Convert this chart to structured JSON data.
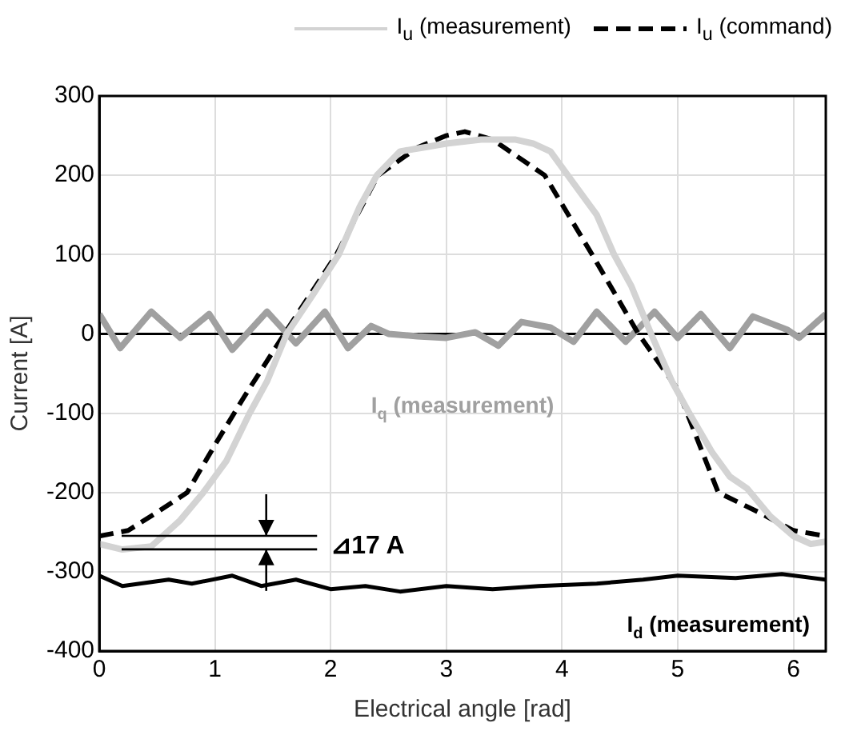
{
  "chart_data": {
    "type": "line",
    "xlabel": "Electrical angle [rad]",
    "ylabel": "Current [A]",
    "xlim": [
      0,
      6.28
    ],
    "ylim": [
      -400,
      300
    ],
    "xticks": [
      0,
      1,
      2,
      3,
      4,
      5,
      6
    ],
    "yticks": [
      -400,
      -300,
      -200,
      -100,
      0,
      100,
      200,
      300
    ],
    "grid": true,
    "legend": "top",
    "marker": "none",
    "series": [
      {
        "name": "I$_{u}$ (measurement)",
        "color": "#d3d3d3",
        "x": [
          0,
          0.2,
          0.45,
          0.7,
          0.9,
          1.1,
          1.3,
          1.45,
          1.62,
          1.85,
          2.07,
          2.25,
          2.4,
          2.6,
          2.8,
          3.0,
          3.3,
          3.6,
          3.75,
          3.9,
          4.1,
          4.3,
          4.45,
          4.6,
          4.77,
          4.95,
          5.1,
          5.3,
          5.45,
          5.6,
          5.8,
          6.0,
          6.15,
          6.28
        ],
        "values": [
          -265,
          -272,
          -268,
          -235,
          -200,
          -160,
          -100,
          -60,
          0,
          50,
          100,
          160,
          200,
          230,
          235,
          240,
          245,
          245,
          240,
          230,
          190,
          150,
          100,
          60,
          0,
          -60,
          -100,
          -150,
          -180,
          -195,
          -230,
          -255,
          -265,
          -262
        ]
      },
      {
        "name": "I$_{u}$ (command)",
        "color": "#000000",
        "line_style": "dashed",
        "x": [
          0,
          0.25,
          0.5,
          0.76,
          1.0,
          1.25,
          1.6,
          2.05,
          2.41,
          2.75,
          3.0,
          3.16,
          3.4,
          3.85,
          4.26,
          4.66,
          5.0,
          5.35,
          5.7,
          6.0,
          6.28
        ],
        "values": [
          -255,
          -248,
          -225,
          -200,
          -140,
          -80,
          0,
          100,
          200,
          235,
          250,
          255,
          245,
          200,
          100,
          0,
          -70,
          -200,
          -225,
          -248,
          -255
        ]
      },
      {
        "name": "I$_{q}$ (measurement)",
        "color": "#a0a0a0",
        "x": [
          0,
          0.18,
          0.45,
          0.7,
          0.95,
          1.15,
          1.45,
          1.7,
          1.95,
          2.15,
          2.35,
          2.5,
          2.75,
          3.0,
          3.25,
          3.45,
          3.65,
          3.9,
          4.1,
          4.3,
          4.55,
          4.8,
          5.0,
          5.2,
          5.45,
          5.65,
          5.95,
          6.05,
          6.28
        ],
        "values": [
          25,
          -18,
          28,
          -5,
          25,
          -20,
          28,
          -12,
          28,
          -18,
          10,
          0,
          -3,
          -5,
          2,
          -15,
          15,
          8,
          -10,
          28,
          -10,
          28,
          -5,
          25,
          -18,
          22,
          5,
          -5,
          25
        ]
      },
      {
        "name": "I$_{d}$ (measurement)",
        "color": "#000000",
        "x": [
          0,
          0.2,
          0.6,
          0.8,
          1.15,
          1.4,
          1.7,
          2.0,
          2.3,
          2.6,
          3.0,
          3.4,
          3.8,
          4.3,
          4.7,
          5.0,
          5.5,
          5.9,
          6.28
        ],
        "values": [
          -305,
          -318,
          -310,
          -315,
          -305,
          -318,
          -310,
          -322,
          -318,
          -325,
          -318,
          -322,
          -318,
          -315,
          -310,
          -305,
          -308,
          -303,
          -310
        ]
      }
    ],
    "annotations": [
      {
        "text": "⊿17 A",
        "x": 0.2,
        "y": -272
      }
    ]
  }
}
